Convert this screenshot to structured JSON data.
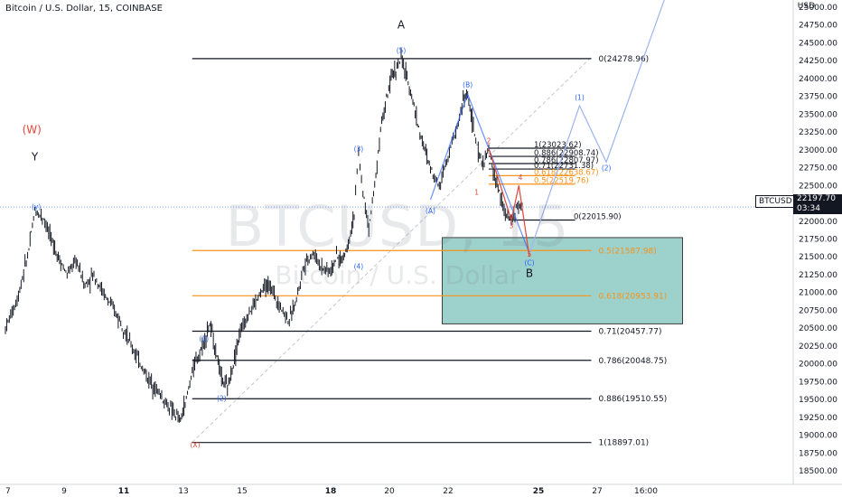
{
  "header": {
    "title": "Bitcoin / U.S. Dollar, 15, COINBASE"
  },
  "watermark": {
    "symbol": "BTCUSD, 15",
    "name": "Bitcoin / U.S. Dollar"
  },
  "price_axis": {
    "unit": "USD"
  },
  "current_price": {
    "symbol": "BTCUSD",
    "value": "22197.70",
    "countdown": "03:34"
  },
  "colors": {
    "black_level": "#131722",
    "orange_level": "#f7931a",
    "blue_wave": "#2962ff",
    "red_wave": "#e0463a",
    "projection": "#9db4f0",
    "zone_fill": "#8cc9c2",
    "zone_border": "#3f3f3f",
    "candle": "#131722"
  },
  "chart_data": {
    "type": "candlestick",
    "title": "Bitcoin / U.S. Dollar, 15, COINBASE",
    "x_axis": {
      "ticks": [
        "7",
        "9",
        "11",
        "13",
        "15",
        "18",
        "20",
        "22",
        "25",
        "27",
        "16:00"
      ]
    },
    "y_axis": {
      "ylim": [
        18400,
        25050
      ],
      "ticks": [
        "18500.00",
        "18750.00",
        "19000.00",
        "19250.00",
        "19500.00",
        "19750.00",
        "20000.00",
        "20250.00",
        "20500.00",
        "20750.00",
        "21000.00",
        "21250.00",
        "21500.00",
        "21750.00",
        "22000.00",
        "22250.00",
        "22500.00",
        "22750.00",
        "23000.00",
        "23250.00",
        "23500.00",
        "23750.00",
        "24000.00",
        "24250.00",
        "24500.00",
        "24750.00",
        "25000.00"
      ]
    },
    "price_path": [
      [
        7.0,
        20500
      ],
      [
        7.4,
        20900
      ],
      [
        7.8,
        21600
      ],
      [
        8.0,
        22150
      ],
      [
        8.3,
        22050
      ],
      [
        8.6,
        21700
      ],
      [
        8.8,
        21500
      ],
      [
        9.1,
        21250
      ],
      [
        9.4,
        21450
      ],
      [
        9.7,
        21100
      ],
      [
        10.0,
        21250
      ],
      [
        10.3,
        21000
      ],
      [
        10.6,
        20800
      ],
      [
        10.9,
        20600
      ],
      [
        11.2,
        20300
      ],
      [
        11.5,
        20050
      ],
      [
        11.8,
        19800
      ],
      [
        12.1,
        19650
      ],
      [
        12.4,
        19450
      ],
      [
        12.7,
        19300
      ],
      [
        12.9,
        19200
      ],
      [
        13.1,
        19500
      ],
      [
        13.3,
        19900
      ],
      [
        13.6,
        20200
      ],
      [
        13.9,
        20550
      ],
      [
        14.1,
        20200
      ],
      [
        14.3,
        19800
      ],
      [
        14.5,
        19650
      ],
      [
        14.7,
        20000
      ],
      [
        14.9,
        20400
      ],
      [
        15.2,
        20700
      ],
      [
        15.5,
        20900
      ],
      [
        15.8,
        21100
      ],
      [
        16.0,
        21050
      ],
      [
        16.3,
        20800
      ],
      [
        16.6,
        20600
      ],
      [
        16.8,
        20850
      ],
      [
        17.1,
        21400
      ],
      [
        17.4,
        21550
      ],
      [
        17.7,
        21350
      ],
      [
        18.0,
        21300
      ],
      [
        18.2,
        21500
      ],
      [
        18.4,
        21450
      ],
      [
        18.6,
        21700
      ],
      [
        18.8,
        22100
      ],
      [
        18.95,
        22950
      ],
      [
        19.1,
        22400
      ],
      [
        19.3,
        21900
      ],
      [
        19.5,
        22500
      ],
      [
        19.7,
        23300
      ],
      [
        19.9,
        23700
      ],
      [
        20.1,
        24050
      ],
      [
        20.3,
        24200
      ],
      [
        20.4,
        24280
      ],
      [
        20.6,
        24000
      ],
      [
        20.8,
        23700
      ],
      [
        21.0,
        23300
      ],
      [
        21.2,
        23000
      ],
      [
        21.4,
        22750
      ],
      [
        21.7,
        22500
      ],
      [
        22.0,
        22950
      ],
      [
        22.3,
        23300
      ],
      [
        22.5,
        23700
      ],
      [
        22.65,
        23780
      ],
      [
        22.8,
        23400
      ],
      [
        23.0,
        22950
      ],
      [
        23.2,
        22800
      ],
      [
        23.35,
        23020
      ],
      [
        23.5,
        22700
      ],
      [
        23.7,
        22400
      ],
      [
        23.9,
        22100
      ],
      [
        24.1,
        22016
      ],
      [
        24.3,
        22200
      ],
      [
        24.5,
        22197
      ]
    ],
    "levels": [
      {
        "label": "0(24278.96)",
        "value": 24278.96,
        "color": "black",
        "x_start": 13.3,
        "x_end": 26.8
      },
      {
        "label": "0.71(20457.77)",
        "value": 20457.77,
        "color": "black",
        "x_start": 13.3,
        "x_end": 26.8
      },
      {
        "label": "0.786(20048.75)",
        "value": 20048.75,
        "color": "black",
        "x_start": 13.3,
        "x_end": 26.8
      },
      {
        "label": "0.886(19510.55)",
        "value": 19510.55,
        "color": "black",
        "x_start": 13.3,
        "x_end": 26.8
      },
      {
        "label": "1(18897.01)",
        "value": 18897.01,
        "color": "black",
        "x_start": 13.3,
        "x_end": 26.8
      },
      {
        "label": "0.5(21587.98)",
        "value": 21587.98,
        "color": "orange",
        "x_start": 13.3,
        "x_end": 26.8
      },
      {
        "label": "0.618(20953.91)",
        "value": 20953.91,
        "color": "orange",
        "x_start": 13.3,
        "x_end": 26.8
      }
    ],
    "fib_small": [
      {
        "label": "1(23023.62)",
        "value": 23023.62,
        "color": "black"
      },
      {
        "label": "0.886(22908.74)",
        "value": 22908.74,
        "color": "black"
      },
      {
        "label": "0.786(22807.97)",
        "value": 22807.97,
        "color": "black"
      },
      {
        "label": "0.71(22731.38)",
        "value": 22731.38,
        "color": "black"
      },
      {
        "label": "0.618(22638.67)",
        "value": 22638.67,
        "color": "orange"
      },
      {
        "label": "0.5(22519.76)",
        "value": 22519.76,
        "color": "orange"
      },
      {
        "label": "0(22015.90)",
        "value": 22015.9,
        "color": "black"
      }
    ],
    "zone": {
      "x_start": 21.8,
      "x_end": 29.8,
      "y_top": 21770,
      "y_bottom": 20560
    },
    "wave_labels": [
      {
        "text": "(W)",
        "x": 7.9,
        "y": 23230,
        "color": "red"
      },
      {
        "text": "Y",
        "x": 8.0,
        "y": 22850,
        "color": "black"
      },
      {
        "text": "(y)",
        "x": 8.05,
        "y": 22170,
        "color": "blue"
      },
      {
        "text": "(X)",
        "x": 13.4,
        "y": 18830,
        "color": "red"
      },
      {
        "text": "(1)",
        "x": 13.7,
        "y": 20320,
        "color": "blue"
      },
      {
        "text": "(2)",
        "x": 14.3,
        "y": 19480,
        "color": "blue"
      },
      {
        "text": "(3)",
        "x": 18.95,
        "y": 22980,
        "color": "blue"
      },
      {
        "text": "(4)",
        "x": 18.95,
        "y": 21330,
        "color": "blue"
      },
      {
        "text": "(5)",
        "x": 20.4,
        "y": 24360,
        "color": "blue"
      },
      {
        "text": "A",
        "x": 20.4,
        "y": 24700,
        "color": "black"
      },
      {
        "text": "(A)",
        "x": 21.4,
        "y": 22110,
        "color": "blue"
      },
      {
        "text": "(B)",
        "x": 22.65,
        "y": 23880,
        "color": "blue"
      },
      {
        "text": "1",
        "x": 22.95,
        "y": 22370,
        "color": "red"
      },
      {
        "text": "2",
        "x": 23.35,
        "y": 23090,
        "color": "red"
      },
      {
        "text": "3",
        "x": 24.1,
        "y": 21900,
        "color": "red"
      },
      {
        "text": "4",
        "x": 24.4,
        "y": 22580,
        "color": "red"
      },
      {
        "text": "5",
        "x": 24.7,
        "y": 21500,
        "color": "red"
      },
      {
        "text": "(C)",
        "x": 24.7,
        "y": 21380,
        "color": "blue"
      },
      {
        "text": "B",
        "x": 24.7,
        "y": 21220,
        "color": "black"
      },
      {
        "text": "(1)",
        "x": 26.4,
        "y": 23700,
        "color": "blue"
      },
      {
        "text": "(2)",
        "x": 27.3,
        "y": 22710,
        "color": "blue"
      }
    ],
    "blue_wave_path": [
      [
        21.4,
        22300
      ],
      [
        22.65,
        23780
      ],
      [
        24.7,
        21550
      ]
    ],
    "red_wave_path": [
      [
        23.35,
        23020
      ],
      [
        24.1,
        22016
      ],
      [
        24.35,
        22500
      ],
      [
        24.7,
        21500
      ]
    ],
    "projection_path": [
      [
        24.7,
        21550
      ],
      [
        26.4,
        23620
      ],
      [
        27.3,
        22830
      ],
      [
        29.2,
        25100
      ]
    ],
    "trendline": [
      [
        13.3,
        18900
      ],
      [
        26.8,
        24300
      ]
    ]
  }
}
